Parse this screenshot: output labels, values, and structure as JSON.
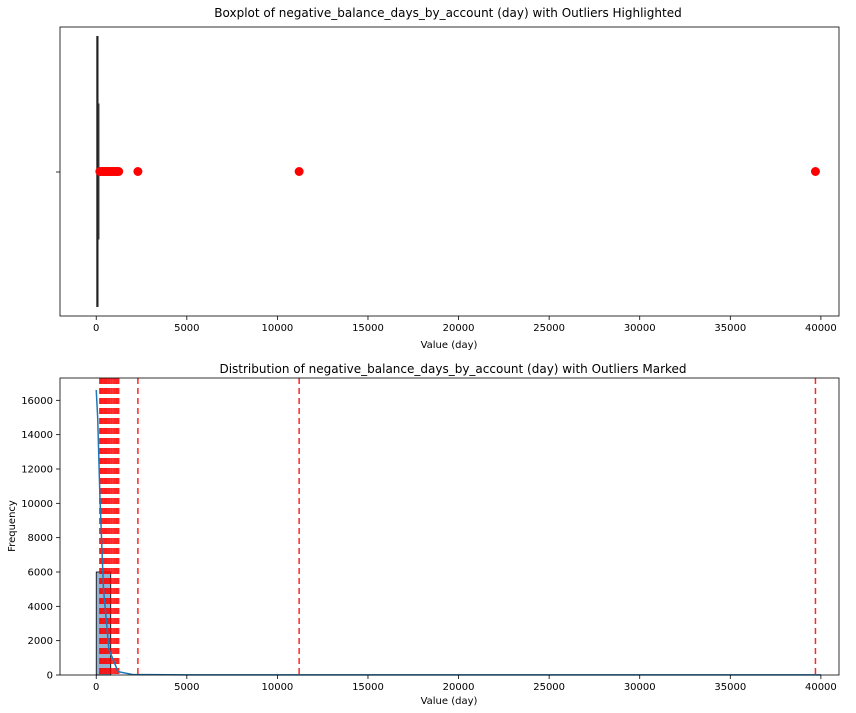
{
  "chart_data": [
    {
      "type": "box",
      "title": "Boxplot of negative_balance_days_by_account (day) with Outliers Highlighted",
      "xlabel": "Value (day)",
      "ylabel": "",
      "xlim": [
        -2000,
        41000
      ],
      "xticks": [
        0,
        5000,
        10000,
        15000,
        20000,
        25000,
        30000,
        35000,
        40000
      ],
      "box": {
        "q1": 30,
        "median": 60,
        "q3": 100,
        "whisker_low": 0,
        "whisker_high": 150
      },
      "outliers": [
        200,
        260,
        330,
        400,
        470,
        540,
        610,
        690,
        760,
        840,
        920,
        1000,
        1080,
        1160,
        1240,
        2300,
        11200,
        39700
      ],
      "outlier_color": "#ff0000",
      "grid": false
    },
    {
      "type": "histogram",
      "title": "Distribution of negative_balance_days_by_account (day) with Outliers Marked",
      "xlabel": "Value (day)",
      "ylabel": "Frequency",
      "xlim": [
        -2000,
        41000
      ],
      "ylim": [
        0,
        17300
      ],
      "xticks": [
        0,
        5000,
        10000,
        15000,
        20000,
        25000,
        30000,
        35000,
        40000
      ],
      "yticks": [
        0,
        2000,
        4000,
        6000,
        8000,
        10000,
        12000,
        14000,
        16000
      ],
      "bins": [
        {
          "start": 0,
          "end": 800,
          "count": 6000
        }
      ],
      "kde": [
        [
          0,
          16600
        ],
        [
          80,
          15000
        ],
        [
          200,
          10500
        ],
        [
          400,
          5000
        ],
        [
          700,
          1500
        ],
        [
          1200,
          200
        ],
        [
          2000,
          30
        ],
        [
          5000,
          10
        ],
        [
          40000,
          10
        ]
      ],
      "outlier_lines": [
        200,
        260,
        330,
        400,
        470,
        540,
        610,
        690,
        760,
        840,
        920,
        1000,
        1080,
        1160,
        1240,
        2300,
        11200,
        39700
      ],
      "outlier_color": "#ff0000",
      "kde_color": "#1f77b4",
      "grid": false
    }
  ]
}
